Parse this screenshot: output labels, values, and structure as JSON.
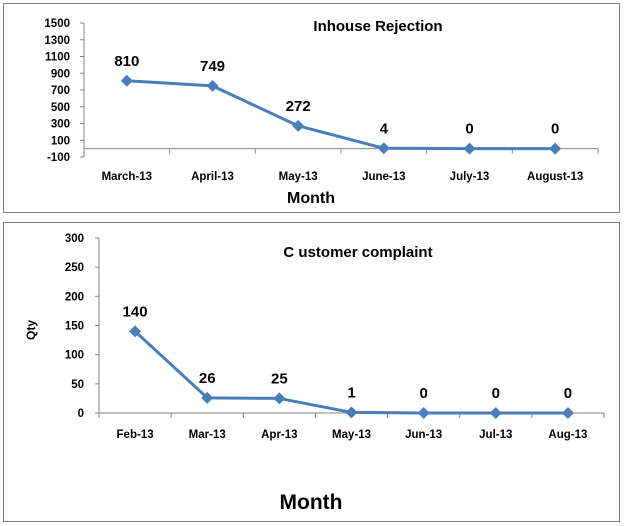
{
  "chart_data": [
    {
      "type": "line",
      "title": "Inhouse Rejection",
      "xlabel": "Month",
      "ylabel": "",
      "categories": [
        "March-13",
        "April-13",
        "May-13",
        "June-13",
        "July-13",
        "August-13"
      ],
      "series": [
        {
          "values": [
            810,
            749,
            272,
            4,
            0,
            0
          ]
        }
      ],
      "data_labels": [
        "810",
        "749",
        "272",
        "4",
        "0",
        "0"
      ],
      "yticks": [
        "1500",
        "1300",
        "1100",
        "900",
        "700",
        "500",
        "300",
        "100",
        "-100"
      ],
      "ylim": [
        -100,
        1500
      ],
      "grid": false,
      "legend": "none",
      "color": "#4a7ebb"
    },
    {
      "type": "line",
      "title": "C ustomer complaint",
      "xlabel": "Month",
      "ylabel": "Qty",
      "categories": [
        "Feb-13",
        "Mar-13",
        "Apr-13",
        "May-13",
        "Jun-13",
        "Jul-13",
        "Aug-13"
      ],
      "series": [
        {
          "values": [
            140,
            26,
            25,
            1,
            0,
            0,
            0
          ]
        }
      ],
      "data_labels": [
        "140",
        "26",
        "25",
        "1",
        "0",
        "0",
        "0"
      ],
      "yticks": [
        "300",
        "250",
        "200",
        "150",
        "100",
        "50",
        "0"
      ],
      "ylim": [
        0,
        300
      ],
      "grid": false,
      "legend": "none",
      "color": "#4a7ebb"
    }
  ]
}
